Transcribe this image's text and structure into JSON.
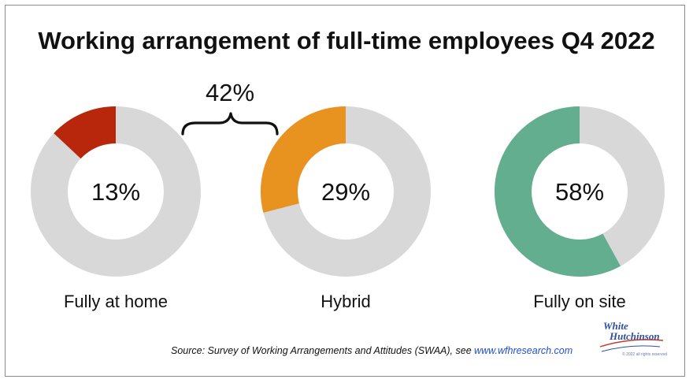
{
  "title": "Working arrangement of full-time employees Q4 2022",
  "chart_data": {
    "type": "pie",
    "title": "Working arrangement of full-time employees Q4 2022",
    "charts": [
      {
        "category": "Fully at home",
        "value": 13,
        "label": "13%",
        "color": "#b8260c",
        "remainder_color": "#d8d8d8"
      },
      {
        "category": "Hybrid",
        "value": 29,
        "label": "29%",
        "color": "#e8921f",
        "remainder_color": "#d8d8d8"
      },
      {
        "category": "Fully on site",
        "value": 58,
        "label": "58%",
        "color": "#63ae8e",
        "remainder_color": "#d8d8d8"
      }
    ],
    "annotation": {
      "text": "42%",
      "spans": [
        "Fully at home",
        "Hybrid"
      ]
    }
  },
  "source": {
    "prefix": "Source: Survey of Working Arrangements and Attitudes (SWAA), see ",
    "link": "www.wfhresearch.com"
  },
  "logo": {
    "line1": "White",
    "line2": "Hutchinson",
    "line3": "© 2022 all rights reserved"
  }
}
